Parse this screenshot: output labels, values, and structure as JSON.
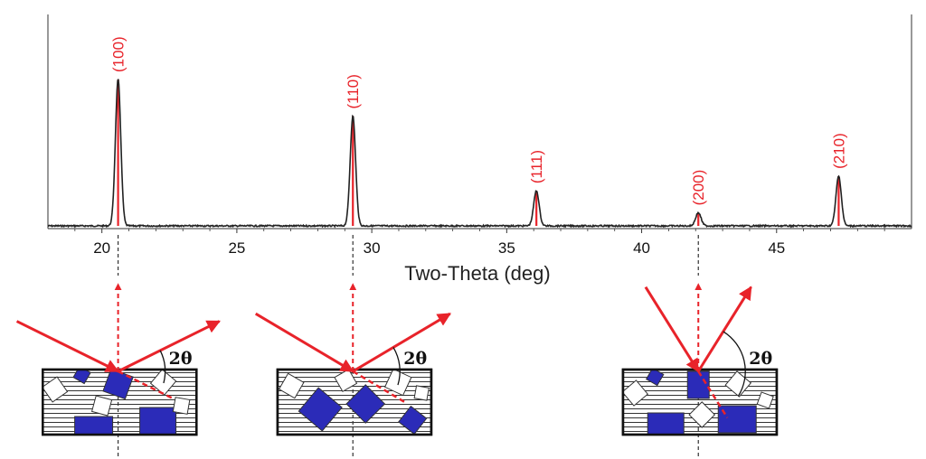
{
  "chart_data": {
    "type": "line",
    "title": "",
    "xlabel": "Two-Theta (deg)",
    "ylabel": "",
    "xlim": [
      18,
      50
    ],
    "ylim": [
      0,
      100
    ],
    "grid": false,
    "x_ticks": [
      20,
      25,
      30,
      35,
      40,
      45
    ],
    "x_tick_labels": [
      "20",
      "25",
      "30",
      "35",
      "40",
      "45"
    ],
    "peaks": [
      {
        "label": "(100)",
        "two_theta": 20.6,
        "intensity": 100
      },
      {
        "label": "(110)",
        "two_theta": 29.3,
        "intensity": 75
      },
      {
        "label": "(111)",
        "two_theta": 36.1,
        "intensity": 24
      },
      {
        "label": "(200)",
        "two_theta": 42.1,
        "intensity": 9
      },
      {
        "label": "(210)",
        "two_theta": 47.3,
        "intensity": 34
      }
    ],
    "baseline_intensity": 0,
    "peak_marker_color": "#e8232a",
    "pattern_color": "#222222"
  },
  "diagrams": [
    {
      "two_theta": 20.6,
      "angle_label": "2θ",
      "incident_from": "left"
    },
    {
      "two_theta": 29.3,
      "angle_label": "2θ",
      "incident_from": "left"
    },
    {
      "two_theta": 42.1,
      "angle_label": "2θ",
      "incident_from": "left"
    }
  ],
  "colors": {
    "beam": "#e8232a",
    "grain_fill": "#2b2bb8",
    "grain_outline": "#333333",
    "hatch": "#333333",
    "axis": "#333333"
  }
}
